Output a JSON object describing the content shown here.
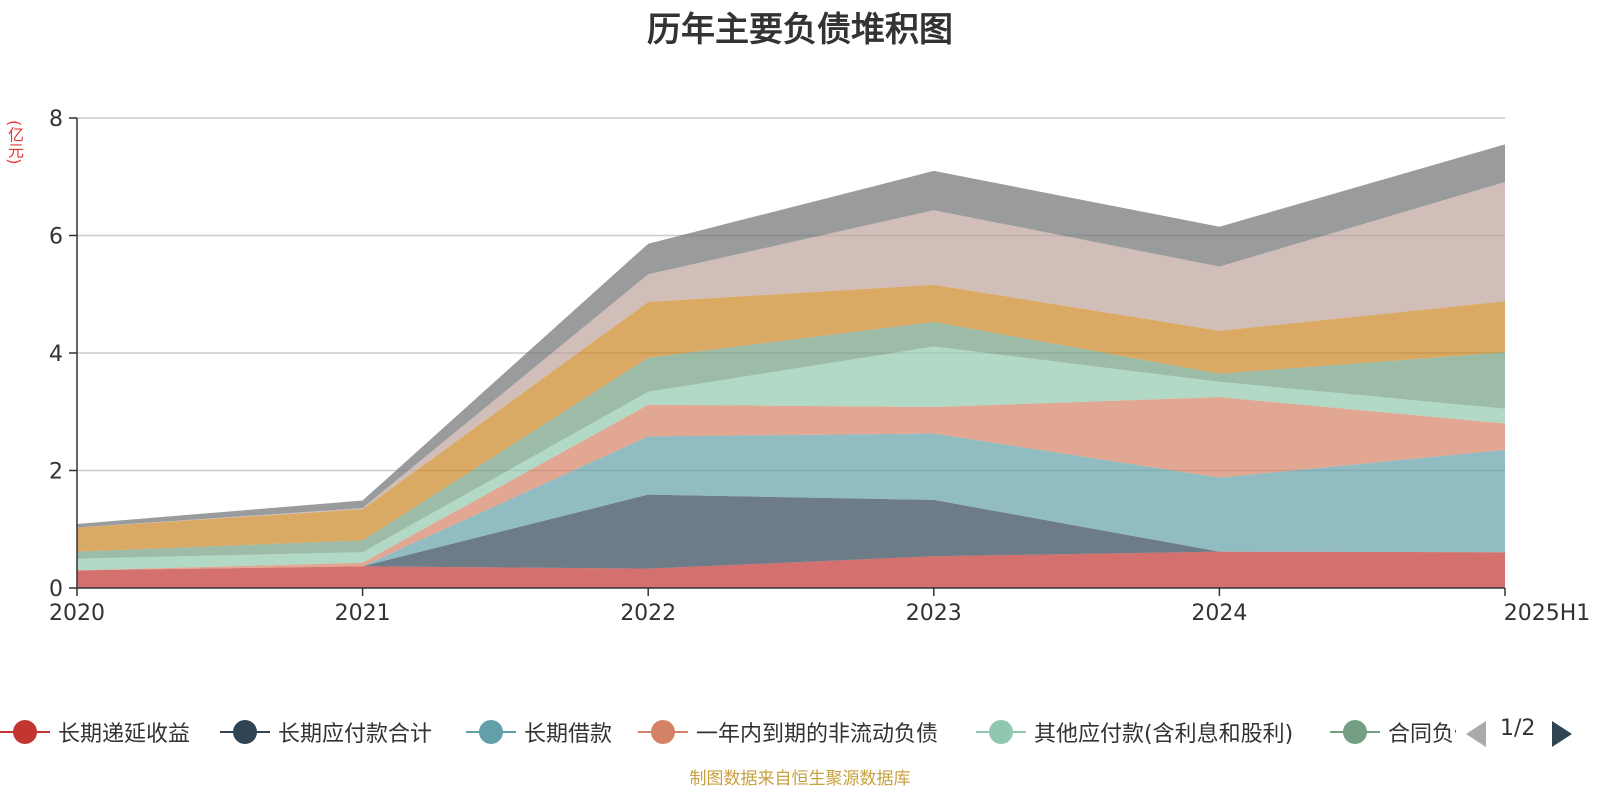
{
  "title": "历年主要负债堆积图",
  "unit": "(亿元)",
  "source": "制图数据来自恒生聚源数据库",
  "legend_pager": {
    "page": "1/2"
  },
  "chart_data": {
    "type": "area",
    "stacked": true,
    "title": "历年主要负债堆积图",
    "ylabel": "(亿元)",
    "categories": [
      "2020",
      "2021",
      "2022",
      "2023",
      "2024",
      "2025H1"
    ],
    "ylim": [
      0,
      8
    ],
    "yticks": [
      "0",
      "2",
      "4",
      "6",
      "8"
    ],
    "grid": true,
    "legend_position": "bottom",
    "series": [
      {
        "name": "长期递延收益",
        "color": "#c23531",
        "values": [
          0.3,
          0.37,
          0.33,
          0.54,
          0.62,
          0.61
        ]
      },
      {
        "name": "长期应付款合计",
        "color": "#2f4554",
        "values": [
          0.0,
          0.0,
          1.26,
          0.96,
          0.0,
          0.0
        ]
      },
      {
        "name": "长期借款",
        "color": "#61a0a8",
        "values": [
          0.0,
          0.0,
          0.99,
          1.13,
          1.26,
          1.74
        ]
      },
      {
        "name": "一年内到期的非流动负债",
        "color": "#d48265",
        "values": [
          0.0,
          0.06,
          0.54,
          0.45,
          1.37,
          0.45
        ]
      },
      {
        "name": "其他应付款(含利息和股利)",
        "color": "#91c7ae",
        "values": [
          0.2,
          0.18,
          0.22,
          1.03,
          0.26,
          0.25
        ]
      },
      {
        "name": "合同负债",
        "color": "#749f83",
        "values": [
          0.12,
          0.2,
          0.58,
          0.42,
          0.14,
          0.96
        ]
      },
      {
        "name": "",
        "color": "#ca8622",
        "values": [
          0.41,
          0.53,
          0.95,
          0.63,
          0.73,
          0.87
        ]
      },
      {
        "name": "",
        "color": "#bda29a",
        "values": [
          0.0,
          0.02,
          0.47,
          1.27,
          1.09,
          2.03
        ]
      },
      {
        "name": "",
        "color": "#6e7074",
        "values": [
          0.06,
          0.13,
          0.52,
          0.67,
          0.68,
          0.64
        ]
      }
    ]
  }
}
